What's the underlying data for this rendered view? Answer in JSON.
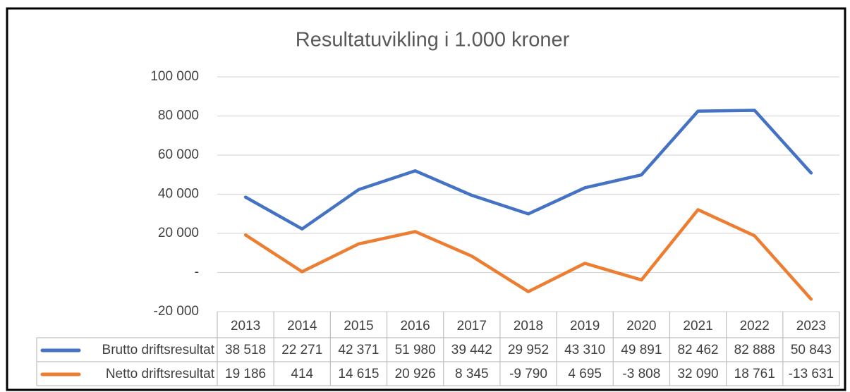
{
  "chart_data": {
    "type": "line",
    "title": "Resultatuvikling i 1.000 kroner",
    "categories": [
      "2013",
      "2014",
      "2015",
      "2016",
      "2017",
      "2018",
      "2019",
      "2020",
      "2021",
      "2022",
      "2023"
    ],
    "series": [
      {
        "name": "Brutto driftsresultat",
        "color": "#4472c4",
        "values": [
          38518,
          22271,
          42371,
          51980,
          39442,
          29952,
          43310,
          49891,
          82462,
          82888,
          50843
        ],
        "value_labels": [
          "38 518",
          "22 271",
          "42 371",
          "51 980",
          "39 442",
          "29 952",
          "43 310",
          "49 891",
          "82 462",
          "82 888",
          "50 843"
        ]
      },
      {
        "name": "Netto driftsresultat",
        "color": "#ed7d31",
        "values": [
          19186,
          414,
          14615,
          20926,
          8345,
          -9790,
          4695,
          -3808,
          32090,
          18761,
          -13631
        ],
        "value_labels": [
          "19 186",
          "414",
          "14 615",
          "20 926",
          "8 345",
          "-9 790",
          "4 695",
          "-3 808",
          "32 090",
          "18 761",
          "-13 631"
        ]
      }
    ],
    "ylim": [
      -20000,
      100000
    ],
    "yticks": [
      {
        "value": -20000,
        "label": "-20 000"
      },
      {
        "value": 0,
        "label": "-"
      },
      {
        "value": 20000,
        "label": "20 000"
      },
      {
        "value": 40000,
        "label": "40 000"
      },
      {
        "value": 60000,
        "label": "60 000"
      },
      {
        "value": 80000,
        "label": "80 000"
      },
      {
        "value": 100000,
        "label": "100 000"
      }
    ],
    "grid": true
  }
}
